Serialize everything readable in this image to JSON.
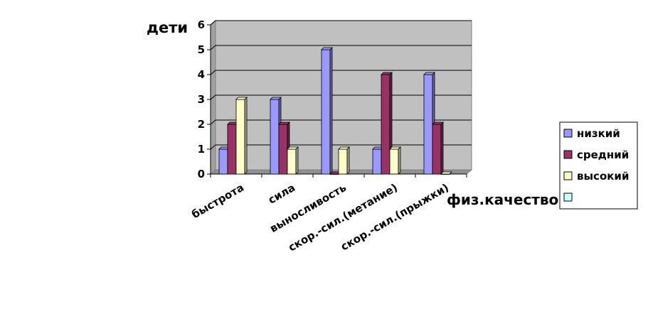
{
  "chart_data": {
    "type": "bar",
    "ylabel": "дети",
    "xlabel": "физ.качество",
    "categories": [
      "быстрота",
      "сила",
      "выносливость",
      "скор.-сил.(метание)",
      "скор.-сил.(прыжки)"
    ],
    "series": [
      {
        "name": "низкий",
        "values": [
          1,
          3,
          5,
          1,
          4
        ]
      },
      {
        "name": "средний",
        "values": [
          2,
          2,
          0,
          4,
          2
        ]
      },
      {
        "name": "высокий",
        "values": [
          3,
          1,
          1,
          1,
          0
        ]
      },
      {
        "name": "",
        "values": [
          0,
          0,
          0,
          0,
          0
        ]
      }
    ],
    "ylim": [
      0,
      6
    ],
    "yticks": [
      "0",
      "1",
      "2",
      "3",
      "4",
      "5",
      "6"
    ],
    "grid": true,
    "legend_position": "right",
    "colors": {
      "plot_background": "#c0c0c0",
      "series": [
        "#9999ff",
        "#993366",
        "#ffffcc",
        "#ccffff"
      ]
    }
  }
}
